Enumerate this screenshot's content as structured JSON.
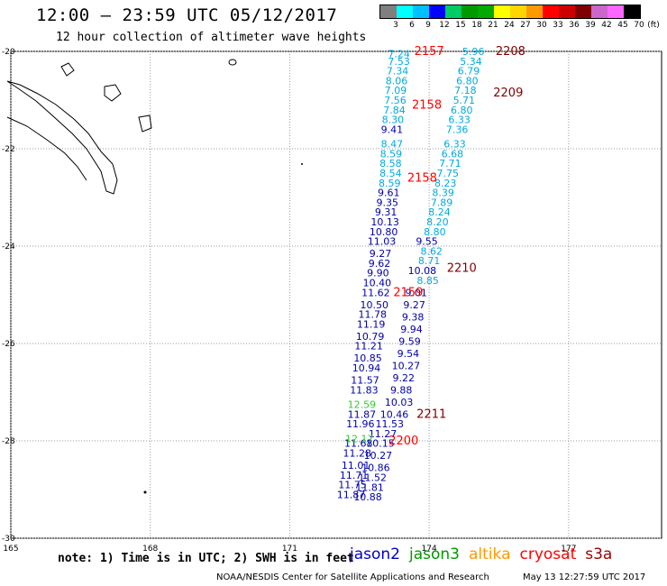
{
  "header": {
    "title": "12:00 – 23:59 UTC 05/12/2017",
    "subtitle": "12 hour collection of altimeter wave heights"
  },
  "scale": {
    "unit": "(ft)",
    "labels": [
      "3",
      "6",
      "9",
      "12",
      "15",
      "18",
      "21",
      "24",
      "27",
      "30",
      "33",
      "36",
      "39",
      "42",
      "45",
      "70"
    ],
    "colors": [
      "#7f7f7f",
      "#00ffff",
      "#00bfff",
      "#0000ff",
      "#00cc66",
      "#009900",
      "#00aa00",
      "#ffff00",
      "#ffd700",
      "#ff9900",
      "#ff0000",
      "#cc0000",
      "#800000",
      "#cc66cc",
      "#ff66ff",
      "#000000"
    ]
  },
  "axes": {
    "lon_labels": [
      "165",
      "168",
      "171",
      "174",
      "177"
    ],
    "lat_labels": [
      "-20",
      "-22",
      "-24",
      "-26",
      "-28",
      "-30"
    ]
  },
  "points_jason2_light": [
    {
      "lat": -20.05,
      "lon": 173.35,
      "v": "7.24"
    },
    {
      "lat": -20.2,
      "lon": 173.35,
      "v": "7.53"
    },
    {
      "lat": -20.4,
      "lon": 173.32,
      "v": "7.34"
    },
    {
      "lat": -20.6,
      "lon": 173.3,
      "v": "8.06"
    },
    {
      "lat": -20.8,
      "lon": 173.28,
      "v": "7.09"
    },
    {
      "lat": -21.0,
      "lon": 173.27,
      "v": "7.56"
    },
    {
      "lat": -21.2,
      "lon": 173.25,
      "v": "7.84"
    },
    {
      "lat": -21.4,
      "lon": 173.22,
      "v": "8.30"
    },
    {
      "lat": -21.9,
      "lon": 173.2,
      "v": "8.47"
    },
    {
      "lat": -22.1,
      "lon": 173.18,
      "v": "8.59"
    },
    {
      "lat": -22.3,
      "lon": 173.17,
      "v": "8.58"
    },
    {
      "lat": -22.5,
      "lon": 173.17,
      "v": "8.54"
    },
    {
      "lat": -22.7,
      "lon": 173.15,
      "v": "8.59"
    },
    {
      "lat": -20.0,
      "lon": 174.95,
      "v": "5.96"
    },
    {
      "lat": -20.2,
      "lon": 174.9,
      "v": "5.34"
    },
    {
      "lat": -20.4,
      "lon": 174.85,
      "v": "6.79"
    },
    {
      "lat": -20.6,
      "lon": 174.82,
      "v": "6.80"
    },
    {
      "lat": -20.8,
      "lon": 174.78,
      "v": "7.18"
    },
    {
      "lat": -21.0,
      "lon": 174.75,
      "v": "5.71"
    },
    {
      "lat": -21.2,
      "lon": 174.7,
      "v": "6.80"
    },
    {
      "lat": -21.4,
      "lon": 174.65,
      "v": "6.33"
    },
    {
      "lat": -21.6,
      "lon": 174.6,
      "v": "7.36"
    },
    {
      "lat": -21.9,
      "lon": 174.55,
      "v": "6.33"
    },
    {
      "lat": -22.1,
      "lon": 174.5,
      "v": "6.68"
    },
    {
      "lat": -22.3,
      "lon": 174.45,
      "v": "7.71"
    },
    {
      "lat": -22.5,
      "lon": 174.4,
      "v": "7.75"
    },
    {
      "lat": -22.7,
      "lon": 174.35,
      "v": "8.23"
    },
    {
      "lat": -22.9,
      "lon": 174.3,
      "v": "8.39"
    },
    {
      "lat": -23.1,
      "lon": 174.27,
      "v": "7.89"
    },
    {
      "lat": -23.3,
      "lon": 174.22,
      "v": "8.24"
    },
    {
      "lat": -23.5,
      "lon": 174.18,
      "v": "8.20"
    },
    {
      "lat": -23.7,
      "lon": 174.12,
      "v": "8.80"
    },
    {
      "lat": -24.1,
      "lon": 174.05,
      "v": "8.62"
    },
    {
      "lat": -24.3,
      "lon": 174.0,
      "v": "8.71"
    },
    {
      "lat": -24.7,
      "lon": 173.97,
      "v": "8.85"
    }
  ],
  "points_jason2_dark": [
    {
      "lat": -21.6,
      "lon": 173.2,
      "v": "9.41"
    },
    {
      "lat": -22.9,
      "lon": 173.13,
      "v": "9.61"
    },
    {
      "lat": -23.1,
      "lon": 173.1,
      "v": "9.35"
    },
    {
      "lat": -23.3,
      "lon": 173.07,
      "v": "9.31"
    },
    {
      "lat": -23.5,
      "lon": 173.05,
      "v": "10.13"
    },
    {
      "lat": -23.7,
      "lon": 173.02,
      "v": "10.80"
    },
    {
      "lat": -23.9,
      "lon": 172.98,
      "v": "11.03"
    },
    {
      "lat": -24.15,
      "lon": 172.95,
      "v": "9.27"
    },
    {
      "lat": -24.35,
      "lon": 172.93,
      "v": "9.62"
    },
    {
      "lat": -24.55,
      "lon": 172.9,
      "v": "9.90"
    },
    {
      "lat": -24.75,
      "lon": 172.88,
      "v": "10.40"
    },
    {
      "lat": -24.95,
      "lon": 172.85,
      "v": "11.62"
    },
    {
      "lat": -25.2,
      "lon": 172.82,
      "v": "10.50"
    },
    {
      "lat": -25.4,
      "lon": 172.78,
      "v": "11.78"
    },
    {
      "lat": -25.6,
      "lon": 172.75,
      "v": "11.19"
    },
    {
      "lat": -25.85,
      "lon": 172.73,
      "v": "10.79"
    },
    {
      "lat": -26.05,
      "lon": 172.7,
      "v": "11.21"
    },
    {
      "lat": -26.3,
      "lon": 172.68,
      "v": "10.85"
    },
    {
      "lat": -26.5,
      "lon": 172.65,
      "v": "10.94"
    },
    {
      "lat": -26.75,
      "lon": 172.62,
      "v": "11.57"
    },
    {
      "lat": -26.95,
      "lon": 172.6,
      "v": "11.83"
    },
    {
      "lat": -27.45,
      "lon": 172.55,
      "v": "11.87"
    },
    {
      "lat": -27.65,
      "lon": 172.52,
      "v": "11.96"
    },
    {
      "lat": -28.05,
      "lon": 172.48,
      "v": "11.68"
    },
    {
      "lat": -28.25,
      "lon": 172.45,
      "v": "11.28"
    },
    {
      "lat": -28.5,
      "lon": 172.42,
      "v": "11.01"
    },
    {
      "lat": -28.7,
      "lon": 172.38,
      "v": "11.71"
    },
    {
      "lat": -28.9,
      "lon": 172.35,
      "v": "11.75"
    },
    {
      "lat": -29.1,
      "lon": 172.32,
      "v": "11.87"
    },
    {
      "lat": -23.9,
      "lon": 173.95,
      "v": "9.55"
    },
    {
      "lat": -24.5,
      "lon": 173.85,
      "v": "10.08"
    },
    {
      "lat": -24.95,
      "lon": 173.72,
      "v": "9.01"
    },
    {
      "lat": -25.2,
      "lon": 173.68,
      "v": "9.27"
    },
    {
      "lat": -25.45,
      "lon": 173.65,
      "v": "9.38"
    },
    {
      "lat": -25.7,
      "lon": 173.62,
      "v": "9.94"
    },
    {
      "lat": -25.95,
      "lon": 173.58,
      "v": "9.59"
    },
    {
      "lat": -26.2,
      "lon": 173.55,
      "v": "9.54"
    },
    {
      "lat": -26.45,
      "lon": 173.5,
      "v": "10.27"
    },
    {
      "lat": -26.7,
      "lon": 173.45,
      "v": "9.22"
    },
    {
      "lat": -26.95,
      "lon": 173.4,
      "v": "9.88"
    },
    {
      "lat": -27.2,
      "lon": 173.35,
      "v": "10.03"
    },
    {
      "lat": -27.45,
      "lon": 173.25,
      "v": "10.46"
    },
    {
      "lat": -27.65,
      "lon": 173.15,
      "v": "11.53"
    },
    {
      "lat": -27.85,
      "lon": 173.0,
      "v": "11.27"
    },
    {
      "lat": -28.05,
      "lon": 172.95,
      "v": "10.15"
    },
    {
      "lat": -28.3,
      "lon": 172.9,
      "v": "10.27"
    },
    {
      "lat": -28.55,
      "lon": 172.85,
      "v": "10.86"
    },
    {
      "lat": -28.75,
      "lon": 172.78,
      "v": "11.52"
    },
    {
      "lat": -28.95,
      "lon": 172.72,
      "v": "11.81"
    },
    {
      "lat": -29.15,
      "lon": 172.68,
      "v": "10.88"
    }
  ],
  "points_green": [
    {
      "lat": -27.25,
      "lon": 172.55,
      "v": "12.59"
    },
    {
      "lat": -27.95,
      "lon": 172.5,
      "v": "12.17"
    }
  ],
  "times_red": [
    {
      "lat": -20.0,
      "lon": 174.0,
      "v": "2157"
    },
    {
      "lat": -21.1,
      "lon": 173.95,
      "v": "2158"
    },
    {
      "lat": -22.6,
      "lon": 173.85,
      "v": "2158"
    },
    {
      "lat": -24.95,
      "lon": 173.55,
      "v": "2159"
    },
    {
      "lat": -28.0,
      "lon": 173.45,
      "v": "2200"
    }
  ],
  "times_dark": [
    {
      "lat": -20.0,
      "lon": 175.75,
      "v": "2208"
    },
    {
      "lat": -20.85,
      "lon": 175.7,
      "v": "2209"
    },
    {
      "lat": -24.45,
      "lon": 174.7,
      "v": "2210"
    },
    {
      "lat": -27.45,
      "lon": 174.05,
      "v": "2211"
    }
  ],
  "note": "note: 1) Time is in UTC; 2) SWH is in feet",
  "satellites": [
    {
      "name": "jason2",
      "color": "#0000cc"
    },
    {
      "name": "jason3",
      "color": "#009900"
    },
    {
      "name": "altika",
      "color": "#ff9900"
    },
    {
      "name": "cryosat",
      "color": "#ff0000"
    },
    {
      "name": "s3a",
      "color": "#990000"
    }
  ],
  "credit": "NOAA/NESDIS Center for Satellite Applications and Research",
  "stamp": "May 13 12:27:59 UTC 2017"
}
